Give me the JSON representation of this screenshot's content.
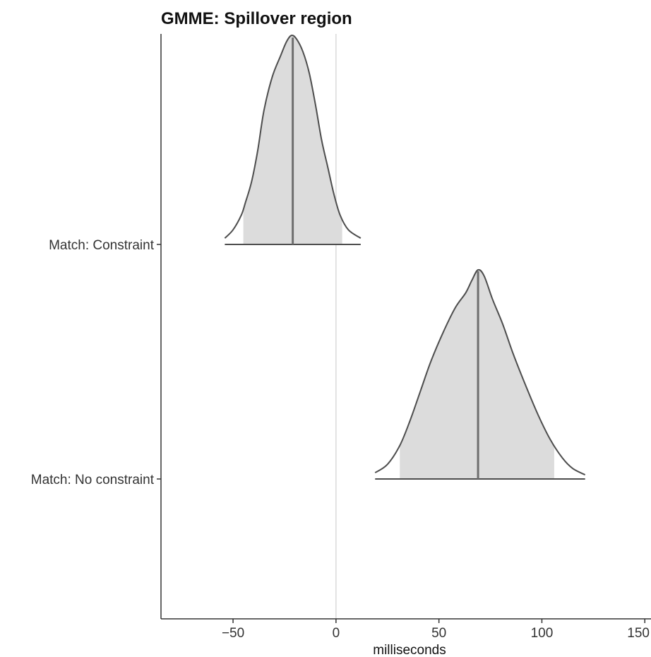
{
  "chart_data": {
    "type": "density-ridge",
    "title": "GMME: Spillover region",
    "xlabel": "milliseconds",
    "ylabel": "",
    "xlim": [
      -85,
      153
    ],
    "xticks": [
      -50,
      0,
      50,
      100,
      150
    ],
    "x_tick_labels": [
      "−50",
      "0",
      "50",
      "100",
      "150"
    ],
    "reference_line_x": 0,
    "grid": false,
    "legend": "none",
    "series": [
      {
        "label": "Match: Constraint",
        "median": -21,
        "interval": [
          -45,
          3
        ],
        "range": [
          -54,
          12
        ],
        "density_points": [
          [
            -54,
            0.03
          ],
          [
            -50,
            0.07
          ],
          [
            -46,
            0.14
          ],
          [
            -44,
            0.2
          ],
          [
            -41,
            0.3
          ],
          [
            -38,
            0.45
          ],
          [
            -35,
            0.64
          ],
          [
            -31,
            0.8
          ],
          [
            -27,
            0.9
          ],
          [
            -24,
            0.97
          ],
          [
            -21.5,
            1.0
          ],
          [
            -19,
            0.98
          ],
          [
            -16,
            0.92
          ],
          [
            -13,
            0.82
          ],
          [
            -10,
            0.67
          ],
          [
            -7,
            0.5
          ],
          [
            -4,
            0.37
          ],
          [
            -1,
            0.24
          ],
          [
            2,
            0.14
          ],
          [
            6,
            0.07
          ],
          [
            12,
            0.03
          ]
        ]
      },
      {
        "label": "Match: No constraint",
        "median": 69,
        "interval": [
          31,
          106
        ],
        "range": [
          19,
          121
        ],
        "density_points": [
          [
            19,
            0.03
          ],
          [
            25,
            0.07
          ],
          [
            31,
            0.16
          ],
          [
            36,
            0.28
          ],
          [
            41,
            0.42
          ],
          [
            46,
            0.56
          ],
          [
            52,
            0.7
          ],
          [
            58,
            0.82
          ],
          [
            63,
            0.89
          ],
          [
            66,
            0.95
          ],
          [
            69,
            1.0
          ],
          [
            72,
            0.97
          ],
          [
            76,
            0.86
          ],
          [
            81,
            0.74
          ],
          [
            86,
            0.6
          ],
          [
            92,
            0.45
          ],
          [
            98,
            0.31
          ],
          [
            104,
            0.19
          ],
          [
            110,
            0.1
          ],
          [
            115,
            0.05
          ],
          [
            121,
            0.02
          ]
        ]
      }
    ],
    "colors": {
      "fill": "#dcdcdc",
      "curve": "#4d4d4d",
      "median": "#6e6e6e",
      "axis": "#333333",
      "reference": "#d9d9d9"
    }
  }
}
